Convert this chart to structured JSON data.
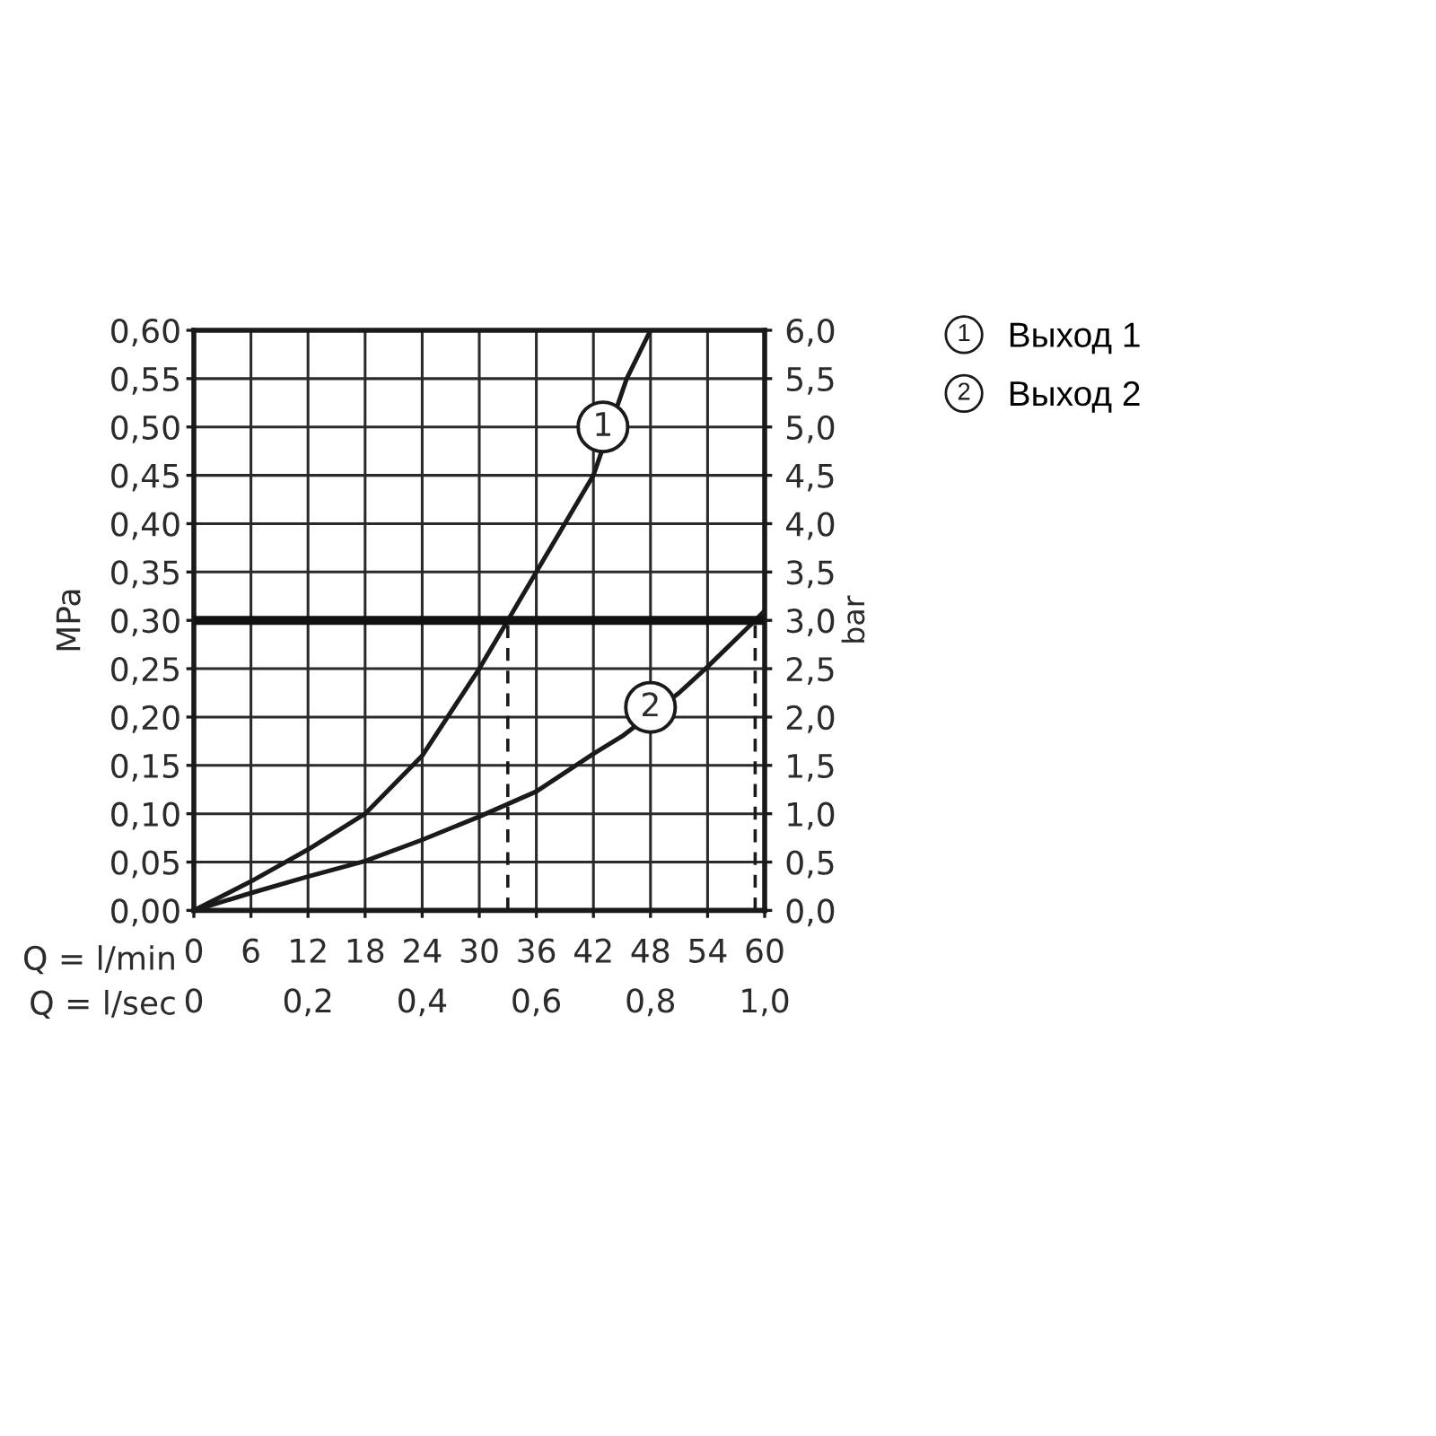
{
  "chart_data": {
    "type": "line",
    "xlabel": "Q = l/min",
    "ylabel": "MPa",
    "y2label": "bar",
    "x2label": "Q = l/sec",
    "xlim": [
      0,
      60
    ],
    "xticks": [
      0,
      6,
      12,
      18,
      24,
      30,
      36,
      42,
      48,
      54,
      60
    ],
    "ylim": [
      0,
      0.6
    ],
    "yticks": [
      {
        "value": 0,
        "label": "0,00"
      },
      {
        "value": 0.05,
        "label": "0,05"
      },
      {
        "value": 0.1,
        "label": "0,10"
      },
      {
        "value": 0.15,
        "label": "0,15"
      },
      {
        "value": 0.2,
        "label": "0,20"
      },
      {
        "value": 0.25,
        "label": "0,25"
      },
      {
        "value": 0.3,
        "label": "0,30"
      },
      {
        "value": 0.35,
        "label": "0,35"
      },
      {
        "value": 0.4,
        "label": "0,40"
      },
      {
        "value": 0.45,
        "label": "0,45"
      },
      {
        "value": 0.5,
        "label": "0,50"
      },
      {
        "value": 0.55,
        "label": "0,55"
      },
      {
        "value": 0.6,
        "label": "0,60"
      }
    ],
    "y2lim": [
      0,
      6
    ],
    "y2ticks": [
      {
        "value": 0,
        "label": "0,0"
      },
      {
        "value": 0.5,
        "label": "0,5"
      },
      {
        "value": 1,
        "label": "1,0"
      },
      {
        "value": 1.5,
        "label": "1,5"
      },
      {
        "value": 2,
        "label": "2,0"
      },
      {
        "value": 2.5,
        "label": "2,5"
      },
      {
        "value": 3,
        "label": "3,0"
      },
      {
        "value": 3.5,
        "label": "3,5"
      },
      {
        "value": 4,
        "label": "4,0"
      },
      {
        "value": 4.5,
        "label": "4,5"
      },
      {
        "value": 5,
        "label": "5,0"
      },
      {
        "value": 5.5,
        "label": "5,5"
      },
      {
        "value": 6,
        "label": "6,0"
      }
    ],
    "x2lim": [
      0,
      1
    ],
    "x2ticks": [
      0,
      {
        "value": 0.2,
        "label": "0,2"
      },
      {
        "value": 0.4,
        "label": "0,4"
      },
      {
        "value": 0.6,
        "label": "0,6"
      },
      {
        "value": 0.8,
        "label": "0,8"
      },
      {
        "value": 1.0,
        "label": "1,0"
      }
    ],
    "series": [
      {
        "name": "Выход 1",
        "color": "#1a1a1a",
        "x": [
          0,
          6,
          12,
          18,
          24,
          30,
          33,
          36,
          42,
          45.5,
          48
        ],
        "values": [
          0,
          0.03,
          0.063,
          0.1,
          0.16,
          0.25,
          0.3,
          0.35,
          0.45,
          0.55,
          0.6
        ]
      },
      {
        "name": "Выход 2",
        "color": "#1a1a1a",
        "x": [
          0,
          6,
          12,
          18,
          24,
          30,
          33,
          36,
          42,
          45,
          51,
          54,
          59,
          60
        ],
        "values": [
          0,
          0.018,
          0.035,
          0.051,
          0.073,
          0.097,
          0.11,
          0.123,
          0.162,
          0.18,
          0.225,
          0.252,
          0.3,
          0.31
        ]
      },
      {
        "color": "#1a1a1a",
        "line_style": "dashed",
        "x": [
          33,
          33
        ],
        "values": [
          0,
          0.3
        ]
      },
      {
        "color": "#1a1a1a",
        "line_style": "dashed",
        "x": [
          59,
          59
        ],
        "values": [
          0,
          0.3
        ]
      }
    ],
    "ref_lines": [
      {
        "axis": "y",
        "value": 0.3,
        "color": "#111111"
      }
    ],
    "annotations": [
      {
        "text": "1",
        "x": 43,
        "y": 0.5
      },
      {
        "text": "2",
        "x": 48,
        "y": 0.21
      }
    ],
    "grid": true,
    "line_style": "solid",
    "legend": "top right"
  }
}
